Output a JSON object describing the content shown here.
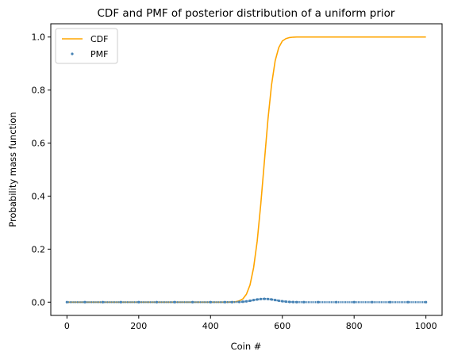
{
  "chart_data": {
    "type": "line",
    "title": "CDF and PMF of posterior distribution of a uniform prior",
    "xlabel": "Coin #",
    "ylabel": "Probability mass function",
    "xlim": [
      -45,
      1045
    ],
    "ylim": [
      -0.05,
      1.05
    ],
    "xticks": [
      0,
      200,
      400,
      600,
      800,
      1000
    ],
    "yticks": [
      0.0,
      0.2,
      0.4,
      0.6,
      0.8,
      1.0
    ],
    "ytick_labels": [
      "0.0",
      "0.2",
      "0.4",
      "0.6",
      "0.8",
      "1.0"
    ],
    "grid": false,
    "legend": {
      "placement": "upper-left"
    },
    "series": [
      {
        "name": "CDF",
        "kind": "line",
        "color": "#ffa500",
        "x": [
          0,
          100,
          200,
          300,
          400,
          450,
          470,
          480,
          490,
          500,
          510,
          520,
          530,
          540,
          550,
          560,
          570,
          580,
          590,
          600,
          610,
          620,
          630,
          640,
          650,
          660,
          700,
          800,
          900,
          1000
        ],
        "values": [
          0.0,
          0.0,
          0.0,
          0.0,
          0.0,
          0.0,
          0.0015,
          0.005,
          0.012,
          0.03,
          0.065,
          0.13,
          0.23,
          0.37,
          0.53,
          0.69,
          0.82,
          0.91,
          0.96,
          0.985,
          0.994,
          0.998,
          0.9995,
          1.0,
          1.0,
          1.0,
          1.0,
          1.0,
          1.0,
          1.0
        ]
      },
      {
        "name": "PMF",
        "kind": "scatter",
        "color": "#4682b4",
        "x": [
          0,
          50,
          100,
          150,
          200,
          250,
          300,
          350,
          400,
          440,
          460,
          480,
          490,
          500,
          510,
          520,
          530,
          540,
          550,
          560,
          570,
          580,
          590,
          600,
          610,
          620,
          630,
          640,
          660,
          700,
          750,
          800,
          850,
          900,
          950,
          1000
        ],
        "values": [
          0.0,
          0.0,
          0.0,
          0.0,
          0.0,
          0.0,
          0.0,
          0.0,
          0.0,
          0.0,
          0.0002,
          0.0008,
          0.0016,
          0.003,
          0.0052,
          0.0078,
          0.0102,
          0.0118,
          0.0124,
          0.0118,
          0.0102,
          0.0079,
          0.0055,
          0.0034,
          0.0019,
          0.0009,
          0.0004,
          0.0001,
          0.0,
          0.0,
          0.0,
          0.0,
          0.0,
          0.0,
          0.0,
          0.0
        ]
      }
    ]
  }
}
